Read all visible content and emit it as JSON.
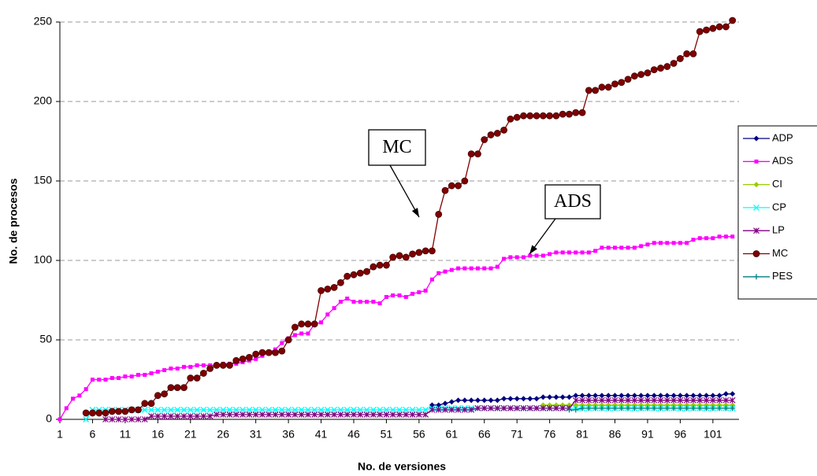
{
  "chart_data": {
    "type": "line",
    "x_label": "No. de versiones",
    "y_label": "No. de procesos",
    "x": [
      1,
      2,
      3,
      4,
      5,
      6,
      7,
      8,
      9,
      10,
      11,
      12,
      13,
      14,
      15,
      16,
      17,
      18,
      19,
      20,
      21,
      22,
      23,
      24,
      25,
      26,
      27,
      28,
      29,
      30,
      31,
      32,
      33,
      34,
      35,
      36,
      37,
      38,
      39,
      40,
      41,
      42,
      43,
      44,
      45,
      46,
      47,
      48,
      49,
      50,
      51,
      52,
      53,
      54,
      55,
      56,
      57,
      58,
      59,
      60,
      61,
      62,
      63,
      64,
      65,
      66,
      67,
      68,
      69,
      70,
      71,
      72,
      73,
      74,
      75,
      76,
      77,
      78,
      79,
      80,
      81,
      82,
      83,
      84,
      85,
      86,
      87,
      88,
      89,
      90,
      91,
      92,
      93,
      94,
      95,
      96,
      97,
      98,
      99,
      100,
      101,
      102,
      103,
      104
    ],
    "xlim": [
      1,
      105
    ],
    "xticks": [
      1,
      6,
      11,
      16,
      21,
      26,
      31,
      36,
      41,
      46,
      51,
      56,
      61,
      66,
      71,
      76,
      81,
      86,
      91,
      96,
      101
    ],
    "ylim": [
      0,
      250
    ],
    "yticks": [
      0,
      50,
      100,
      150,
      200,
      250
    ],
    "grid": true,
    "legend": "right",
    "annotations": [
      {
        "text": "MC"
      },
      {
        "text": "ADS"
      }
    ],
    "series": [
      {
        "name": "ADP",
        "color": "#000080",
        "marker": "diamond",
        "values": [
          null,
          null,
          null,
          null,
          null,
          null,
          null,
          null,
          null,
          null,
          null,
          null,
          null,
          null,
          null,
          null,
          null,
          null,
          null,
          null,
          null,
          null,
          null,
          null,
          null,
          null,
          null,
          null,
          null,
          null,
          null,
          null,
          null,
          null,
          null,
          null,
          null,
          null,
          null,
          null,
          null,
          null,
          null,
          null,
          null,
          null,
          null,
          null,
          null,
          null,
          null,
          null,
          null,
          null,
          null,
          null,
          null,
          9,
          9,
          10,
          11,
          12,
          12,
          12,
          12,
          12,
          12,
          12,
          13,
          13,
          13,
          13,
          13,
          13,
          14,
          14,
          14,
          14,
          14,
          15,
          15,
          15,
          15,
          15,
          15,
          15,
          15,
          15,
          15,
          15,
          15,
          15,
          15,
          15,
          15,
          15,
          15,
          15,
          15,
          15,
          15,
          15,
          16,
          16
        ]
      },
      {
        "name": "ADS",
        "color": "#ff00ff",
        "marker": "square",
        "values": [
          0,
          7,
          13,
          15,
          19,
          25,
          25,
          25,
          26,
          26,
          27,
          27,
          28,
          28,
          29,
          30,
          31,
          32,
          32,
          33,
          33,
          34,
          34,
          34,
          34,
          35,
          35,
          35,
          36,
          37,
          38,
          40,
          42,
          44,
          48,
          51,
          53,
          54,
          54,
          60,
          61,
          66,
          70,
          74,
          76,
          74,
          74,
          74,
          74,
          73,
          77,
          78,
          78,
          77,
          79,
          80,
          81,
          88,
          92,
          93,
          94,
          95,
          95,
          95,
          95,
          95,
          95,
          96,
          101,
          102,
          102,
          102,
          103,
          103,
          103,
          104,
          105,
          105,
          105,
          105,
          105,
          105,
          106,
          108,
          108,
          108,
          108,
          108,
          108,
          109,
          110,
          111,
          111,
          111,
          111,
          111,
          111,
          113,
          114,
          114,
          114,
          115,
          115,
          115
        ]
      },
      {
        "name": "CI",
        "color": "#99cc00",
        "marker": "diamond",
        "values": [
          null,
          null,
          null,
          null,
          null,
          null,
          null,
          null,
          null,
          null,
          null,
          null,
          null,
          null,
          null,
          null,
          null,
          null,
          null,
          null,
          null,
          null,
          null,
          null,
          null,
          null,
          null,
          null,
          null,
          null,
          null,
          null,
          null,
          null,
          null,
          null,
          null,
          null,
          null,
          null,
          null,
          null,
          null,
          null,
          null,
          null,
          null,
          null,
          null,
          null,
          null,
          null,
          null,
          null,
          null,
          null,
          null,
          null,
          null,
          null,
          null,
          null,
          null,
          null,
          null,
          null,
          null,
          null,
          null,
          null,
          null,
          null,
          null,
          null,
          9,
          9,
          9,
          9,
          9,
          9,
          9,
          9,
          9,
          9,
          9,
          9,
          9,
          9,
          9,
          9,
          9,
          9,
          9,
          9,
          9,
          9,
          9,
          9,
          9,
          9,
          9,
          9,
          9,
          9
        ]
      },
      {
        "name": "CP",
        "color": "#00ffff",
        "marker": "x",
        "values": [
          null,
          null,
          null,
          null,
          0,
          6,
          6,
          6,
          6,
          6,
          6,
          6,
          6,
          6,
          6,
          6,
          6,
          6,
          6,
          6,
          6,
          6,
          6,
          6,
          6,
          6,
          6,
          6,
          6,
          6,
          6,
          6,
          6,
          6,
          6,
          6,
          6,
          6,
          6,
          6,
          6,
          6,
          6,
          6,
          6,
          6,
          6,
          6,
          6,
          6,
          6,
          6,
          6,
          6,
          6,
          6,
          6,
          7,
          7,
          7,
          7,
          7,
          7,
          7,
          7,
          7,
          7,
          7,
          7,
          7,
          7,
          7,
          7,
          7,
          7,
          7,
          7,
          7,
          7,
          7,
          7,
          7,
          7,
          7,
          7,
          7,
          7,
          7,
          7,
          7,
          7,
          7,
          7,
          7,
          7,
          7,
          7,
          7,
          7,
          7,
          7,
          7,
          7,
          7
        ]
      },
      {
        "name": "LP",
        "color": "#800080",
        "marker": "star",
        "values": [
          null,
          null,
          null,
          null,
          null,
          null,
          null,
          0,
          0,
          0,
          0,
          0,
          0,
          0,
          2,
          2,
          2,
          2,
          2,
          2,
          2,
          2,
          2,
          2,
          3,
          3,
          3,
          3,
          3,
          3,
          3,
          3,
          3,
          3,
          3,
          3,
          3,
          3,
          3,
          3,
          3,
          3,
          3,
          3,
          3,
          3,
          3,
          3,
          3,
          3,
          3,
          3,
          3,
          3,
          3,
          3,
          3,
          6,
          6,
          6,
          6,
          6,
          6,
          6,
          7,
          7,
          7,
          7,
          7,
          7,
          7,
          7,
          7,
          7,
          7,
          7,
          7,
          7,
          7,
          12,
          12,
          12,
          12,
          12,
          12,
          12,
          12,
          12,
          12,
          12,
          12,
          12,
          12,
          12,
          12,
          12,
          12,
          12,
          12,
          12,
          12,
          12,
          12,
          12
        ]
      },
      {
        "name": "MC",
        "color": "#800000",
        "marker": "circle",
        "values": [
          null,
          null,
          null,
          null,
          4,
          4,
          4,
          4,
          5,
          5,
          5,
          6,
          6,
          10,
          10,
          15,
          16,
          20,
          20,
          20,
          26,
          26,
          29,
          32,
          34,
          34,
          34,
          37,
          38,
          39,
          41,
          42,
          42,
          42,
          43,
          50,
          58,
          60,
          60,
          60,
          81,
          82,
          83,
          86,
          90,
          91,
          92,
          93,
          96,
          97,
          97,
          102,
          103,
          102,
          104,
          105,
          106,
          106,
          129,
          144,
          147,
          147,
          150,
          167,
          167,
          176,
          179,
          180,
          182,
          189,
          190,
          191,
          191,
          191,
          191,
          191,
          191,
          192,
          192,
          193,
          193,
          207,
          207,
          209,
          209,
          211,
          212,
          214,
          216,
          217,
          218,
          220,
          221,
          222,
          224,
          227,
          230,
          230,
          244,
          245,
          246,
          247,
          247,
          251
        ]
      },
      {
        "name": "PES",
        "color": "#008080",
        "marker": "plus",
        "values": [
          null,
          null,
          null,
          null,
          null,
          null,
          null,
          null,
          null,
          null,
          null,
          null,
          null,
          null,
          null,
          null,
          null,
          null,
          null,
          null,
          null,
          null,
          null,
          null,
          null,
          null,
          null,
          null,
          null,
          null,
          null,
          null,
          null,
          null,
          null,
          null,
          null,
          null,
          null,
          null,
          null,
          null,
          null,
          null,
          null,
          null,
          null,
          null,
          null,
          null,
          null,
          null,
          null,
          null,
          null,
          null,
          null,
          null,
          null,
          null,
          null,
          null,
          null,
          null,
          null,
          null,
          null,
          null,
          null,
          null,
          null,
          null,
          null,
          null,
          null,
          null,
          null,
          null,
          6,
          6,
          7,
          7,
          7,
          7,
          7,
          7,
          7,
          7,
          7,
          7,
          7,
          7,
          7,
          7,
          7,
          7,
          7,
          7,
          7,
          7,
          7,
          7,
          7,
          7
        ]
      }
    ]
  }
}
